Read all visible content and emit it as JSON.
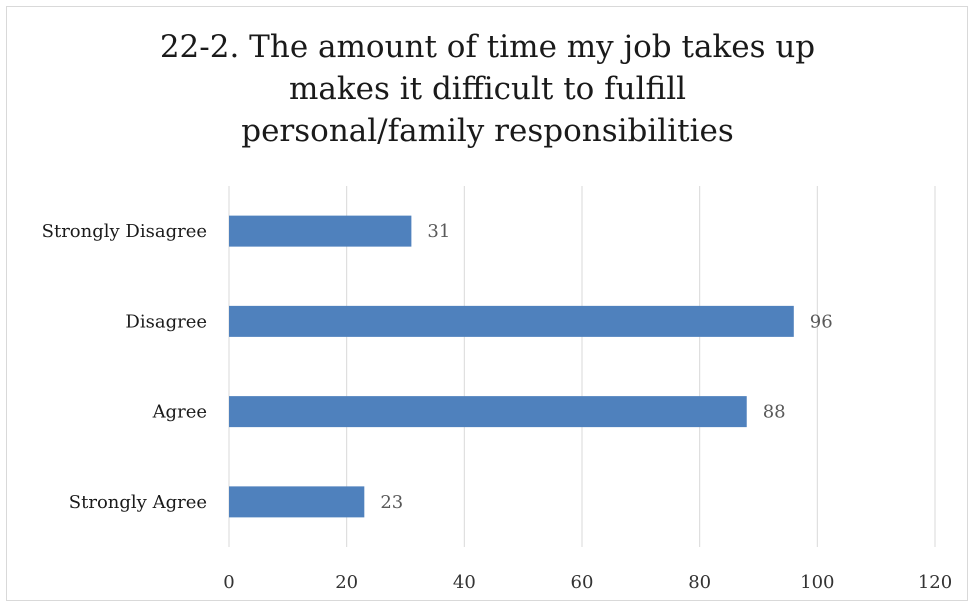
{
  "chart_data": {
    "type": "bar",
    "orientation": "horizontal",
    "title_lines": [
      "22-2. The amount of time my job takes up",
      "makes it difficult to fulfill",
      "personal/family responsibilities"
    ],
    "categories": [
      "Strongly Disagree",
      "Disagree",
      "Agree",
      "Strongly Agree"
    ],
    "values": [
      31,
      96,
      88,
      23
    ],
    "xlim": [
      0,
      120
    ],
    "xticks": [
      0,
      20,
      40,
      60,
      80,
      100,
      120
    ],
    "grid": "vertical",
    "legend": "none",
    "bar_color": "#4f81bd",
    "grid_color": "#d9d9d9"
  }
}
